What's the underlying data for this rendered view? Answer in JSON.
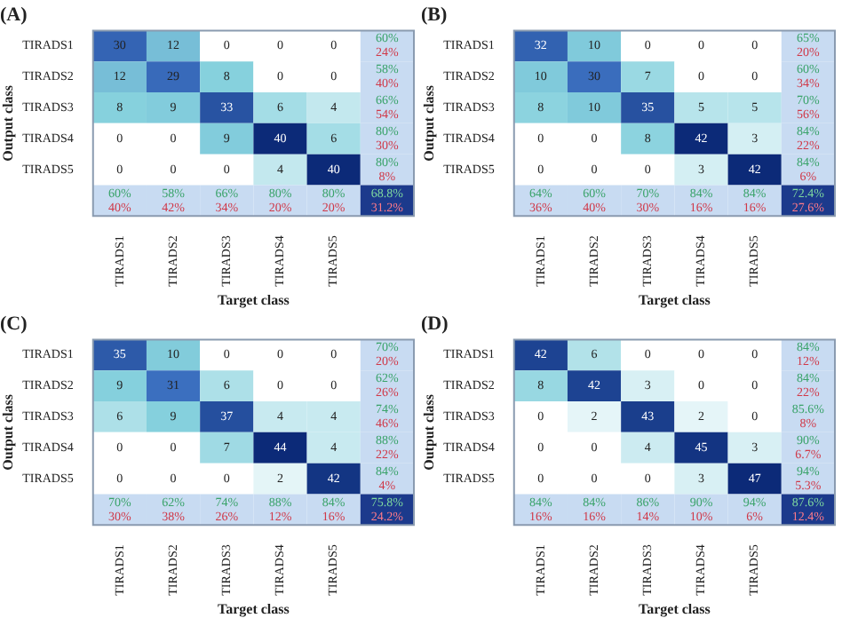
{
  "chart_data": [
    {
      "type": "heatmap",
      "title": "(A)",
      "xlabel": "Target class",
      "ylabel": "Output class",
      "categories": [
        "TIRADS1",
        "TIRADS2",
        "TIRADS3",
        "TIRADS4",
        "TIRADS5"
      ],
      "y_categories": [
        "TIRADS1",
        "TIRADS2",
        "TIRADS3",
        "TIRADS4",
        "TIRADS5"
      ],
      "cells": [
        [
          30,
          12,
          0,
          0,
          0
        ],
        [
          12,
          29,
          8,
          0,
          0
        ],
        [
          8,
          9,
          33,
          6,
          4
        ],
        [
          0,
          0,
          9,
          40,
          6
        ],
        [
          0,
          0,
          0,
          4,
          40
        ]
      ],
      "data_labels": true,
      "annotations": [
        {
          "text": "60%\n24%",
          "y": "TIRADS1"
        },
        {
          "text": "58%\n40%",
          "y": "TIRADS2"
        },
        {
          "text": "66%\n54%",
          "y": "TIRADS3"
        },
        {
          "text": "80%\n30%",
          "y": "TIRADS4"
        },
        {
          "text": "80%\n8%",
          "y": "TIRADS5"
        },
        {
          "text": "60%\n40%",
          "x": "TIRADS1"
        },
        {
          "text": "58%\n42%",
          "x": "TIRADS2"
        },
        {
          "text": "66%\n34%",
          "x": "TIRADS3"
        },
        {
          "text": "80%\n20%",
          "x": "TIRADS4"
        },
        {
          "text": "80%\n20%",
          "x": "TIRADS5"
        },
        "68.8%\n31.2%"
      ]
    },
    {
      "type": "heatmap",
      "title": "(B)",
      "xlabel": "Target class",
      "ylabel": "Output class",
      "categories": [
        "TIRADS1",
        "TIRADS2",
        "TIRADS3",
        "TIRADS4",
        "TIRADS5"
      ],
      "y_categories": [
        "TIRADS1",
        "TIRADS2",
        "TIRADS3",
        "TIRADS4",
        "TIRADS5"
      ],
      "cells": [
        [
          32,
          10,
          0,
          0,
          0
        ],
        [
          10,
          30,
          7,
          0,
          0
        ],
        [
          8,
          10,
          35,
          5,
          5
        ],
        [
          0,
          0,
          8,
          42,
          3
        ],
        [
          0,
          0,
          0,
          3,
          42
        ]
      ],
      "data_labels": true,
      "annotations": [
        {
          "text": "65%\n20%",
          "y": "TIRADS1"
        },
        {
          "text": "60%\n34%",
          "y": "TIRADS2"
        },
        {
          "text": "70%\n56%",
          "y": "TIRADS3"
        },
        {
          "text": "84%\n22%",
          "y": "TIRADS4"
        },
        {
          "text": "84%\n6%",
          "y": "TIRADS5"
        },
        {
          "text": "64%\n36%",
          "x": "TIRADS1"
        },
        {
          "text": "60%\n40%",
          "x": "TIRADS2"
        },
        {
          "text": "70%\n30%",
          "x": "TIRADS3"
        },
        {
          "text": "84%\n16%",
          "x": "TIRADS4"
        },
        {
          "text": "84%\n16%",
          "x": "TIRADS5"
        },
        "72.4%\n27.6%"
      ]
    },
    {
      "type": "heatmap",
      "title": "(C)",
      "xlabel": "Target class",
      "ylabel": "Output class",
      "categories": [
        "TIRADS1",
        "TIRADS2",
        "TIRADS3",
        "TIRADS4",
        "TIRADS5"
      ],
      "y_categories": [
        "TIRADS1",
        "TIRADS2",
        "TIRADS3",
        "TIRADS4",
        "TIRADS5"
      ],
      "cells": [
        [
          35,
          10,
          0,
          0,
          0
        ],
        [
          9,
          31,
          6,
          0,
          0
        ],
        [
          6,
          9,
          37,
          4,
          4
        ],
        [
          0,
          0,
          7,
          44,
          4
        ],
        [
          0,
          0,
          0,
          2,
          42
        ]
      ],
      "data_labels": true,
      "annotations": [
        {
          "text": "70%\n20%",
          "y": "TIRADS1"
        },
        {
          "text": "62%\n26%",
          "y": "TIRADS2"
        },
        {
          "text": "74%\n46%",
          "y": "TIRADS3"
        },
        {
          "text": "88%\n22%",
          "y": "TIRADS4"
        },
        {
          "text": "84%\n4%",
          "y": "TIRADS5"
        },
        {
          "text": "70%\n30%",
          "x": "TIRADS1"
        },
        {
          "text": "62%\n38%",
          "x": "TIRADS2"
        },
        {
          "text": "74%\n26%",
          "x": "TIRADS3"
        },
        {
          "text": "88%\n12%",
          "x": "TIRADS4"
        },
        {
          "text": "84%\n16%",
          "x": "TIRADS5"
        },
        "75.8%\n24.2%"
      ]
    },
    {
      "type": "heatmap",
      "title": "(D)",
      "xlabel": "Target class",
      "ylabel": "Output class",
      "categories": [
        "TIRADS1",
        "TIRADS2",
        "TIRADS3",
        "TIRADS4",
        "TIRADS5"
      ],
      "y_categories": [
        "TIRADS1",
        "TIRADS2",
        "TIRADS3",
        "TIRADS4",
        "TIRADS5"
      ],
      "cells": [
        [
          42,
          6,
          0,
          0,
          0
        ],
        [
          8,
          42,
          3,
          0,
          0
        ],
        [
          0,
          2,
          43,
          2,
          0
        ],
        [
          0,
          0,
          4,
          45,
          3
        ],
        [
          0,
          0,
          0,
          3,
          47
        ]
      ],
      "data_labels": true,
      "annotations": [
        {
          "text": "84%\n12%",
          "y": "TIRADS1"
        },
        {
          "text": "84%\n22%",
          "y": "TIRADS2"
        },
        {
          "text": "85.6%\n8%",
          "y": "TIRADS3"
        },
        {
          "text": "90%\n6.7%",
          "y": "TIRADS4"
        },
        {
          "text": "94%\n5.3%",
          "y": "TIRADS5"
        },
        {
          "text": "84%\n16%",
          "x": "TIRADS1"
        },
        {
          "text": "84%\n16%",
          "x": "TIRADS2"
        },
        {
          "text": "86%\n14%",
          "x": "TIRADS3"
        },
        {
          "text": "90%\n10%",
          "x": "TIRADS4"
        },
        {
          "text": "94%\n6%",
          "x": "TIRADS5"
        },
        "87.6%\n12.4%"
      ]
    }
  ]
}
